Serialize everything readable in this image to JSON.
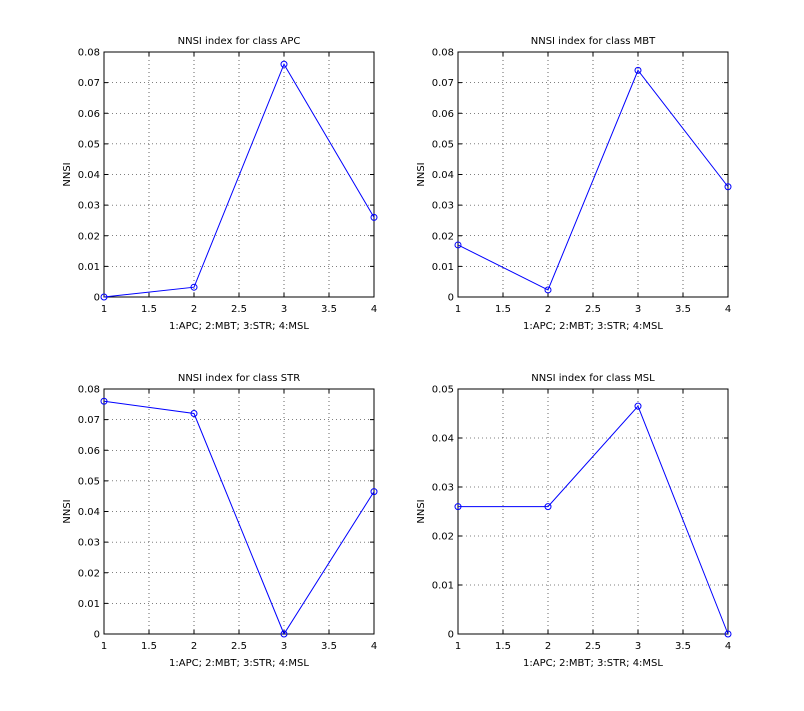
{
  "chart_data": [
    {
      "type": "line",
      "title": "NNSI index for class APC",
      "xlabel": "1:APC; 2:MBT; 3:STR; 4:MSL",
      "ylabel": "NNSI",
      "xlim": [
        1,
        4
      ],
      "ylim": [
        0,
        0.08
      ],
      "xticks": [
        "1",
        "1.5",
        "2",
        "2.5",
        "3",
        "3.5",
        "4"
      ],
      "yticks": [
        "0",
        "0.01",
        "0.02",
        "0.03",
        "0.04",
        "0.05",
        "0.06",
        "0.07",
        "0.08"
      ],
      "grid": true,
      "marker": "circle",
      "color": "#0000ff",
      "x": [
        1,
        2,
        3,
        4
      ],
      "y": [
        0.0,
        0.0032,
        0.076,
        0.026
      ]
    },
    {
      "type": "line",
      "title": "NNSI index for class MBT",
      "xlabel": "1:APC; 2:MBT; 3:STR; 4:MSL",
      "ylabel": "NNSI",
      "xlim": [
        1,
        4
      ],
      "ylim": [
        0,
        0.08
      ],
      "xticks": [
        "1",
        "1.5",
        "2",
        "2.5",
        "3",
        "3.5",
        "4"
      ],
      "yticks": [
        "0",
        "0.01",
        "0.02",
        "0.03",
        "0.04",
        "0.05",
        "0.06",
        "0.07",
        "0.08"
      ],
      "grid": true,
      "marker": "circle",
      "color": "#0000ff",
      "x": [
        1,
        2,
        3,
        4
      ],
      "y": [
        0.017,
        0.0023,
        0.074,
        0.036
      ]
    },
    {
      "type": "line",
      "title": "NNSI index for class STR",
      "xlabel": "1:APC; 2:MBT; 3:STR; 4:MSL",
      "ylabel": "NNSI",
      "xlim": [
        1,
        4
      ],
      "ylim": [
        0,
        0.08
      ],
      "xticks": [
        "1",
        "1.5",
        "2",
        "2.5",
        "3",
        "3.5",
        "4"
      ],
      "yticks": [
        "0",
        "0.01",
        "0.02",
        "0.03",
        "0.04",
        "0.05",
        "0.06",
        "0.07",
        "0.08"
      ],
      "grid": true,
      "marker": "circle",
      "color": "#0000ff",
      "x": [
        1,
        2,
        3,
        4
      ],
      "y": [
        0.076,
        0.072,
        0.0,
        0.0465
      ]
    },
    {
      "type": "line",
      "title": "NNSI index for class MSL",
      "xlabel": "1:APC; 2:MBT; 3:STR; 4:MSL",
      "ylabel": "NNSI",
      "xlim": [
        1,
        4
      ],
      "ylim": [
        0,
        0.05
      ],
      "xticks": [
        "1",
        "1.5",
        "2",
        "2.5",
        "3",
        "3.5",
        "4"
      ],
      "yticks": [
        "0",
        "0.01",
        "0.02",
        "0.03",
        "0.04",
        "0.05"
      ],
      "grid": true,
      "marker": "circle",
      "color": "#0000ff",
      "x": [
        1,
        2,
        3,
        4
      ],
      "y": [
        0.026,
        0.026,
        0.0465,
        0.0
      ]
    }
  ]
}
